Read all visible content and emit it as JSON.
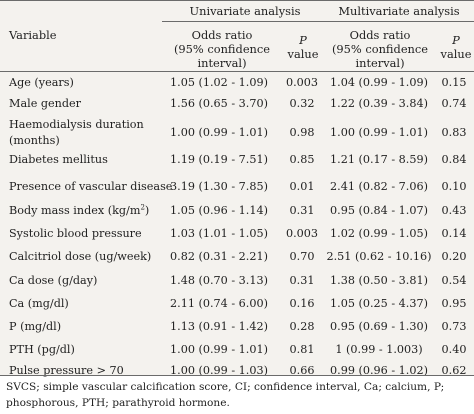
{
  "table": {
    "header": {
      "variable": "Variable",
      "univariate": "Univariate analysis",
      "multivariate": "Multivariate analysis",
      "or_line1": "Odds ratio",
      "or_line2": "(95% confidence",
      "or_line3": "interval)",
      "p_line1": "P",
      "p_line2": "value"
    },
    "rows": [
      {
        "variable": "Age (years)",
        "uni_or": "1.05 (1.02 - 1.09)",
        "uni_p": "0.003",
        "multi_or": "1.04 (0.99 - 1.09)",
        "multi_p": "0.15"
      },
      {
        "variable": "Male gender",
        "uni_or": "1.56 (0.65 - 3.70)",
        "uni_p": "0.32",
        "multi_or": "1.22 (0.39 - 3.84)",
        "multi_p": "0.74"
      },
      {
        "variable": "Haemodialysis duration",
        "variable_line2": "(months)",
        "uni_or": "1.00 (0.99 - 1.01)",
        "uni_p": "0.98",
        "multi_or": "1.00 (0.99 - 1.01)",
        "multi_p": "0.83"
      },
      {
        "variable": "Diabetes mellitus",
        "uni_or": "1.19 (0.19 - 7.51)",
        "uni_p": "0.85",
        "multi_or": "1.21 (0.17 - 8.59)",
        "multi_p": "0.84"
      },
      {
        "variable": "Presence of vascular disease",
        "uni_or": "3.19 (1.30 - 7.85)",
        "uni_p": "0.01",
        "multi_or": "2.41 (0.82 - 7.06)",
        "multi_p": "0.10"
      },
      {
        "variable": "Body mass index (kg/m",
        "variable_sup": "2",
        "variable_close": ")",
        "uni_or": "1.05 (0.96 - 1.14)",
        "uni_p": "0.31",
        "multi_or": "0.95 (0.84 - 1.07)",
        "multi_p": "0.43"
      },
      {
        "variable": "Systolic blood pressure",
        "uni_or": "1.03 (1.01 - 1.05)",
        "uni_p": "0.003",
        "multi_or": "1.02 (0.99 - 1.05)",
        "multi_p": "0.14"
      },
      {
        "variable": "Calcitriol dose (ug/week)",
        "uni_or": "0.82 (0.31 - 2.21)",
        "uni_p": "0.70",
        "multi_or": "2.51 (0.62 - 10.16)",
        "multi_p": "0.20"
      },
      {
        "variable": "Ca dose (g/day)",
        "uni_or": "1.48 (0.70 - 3.13)",
        "uni_p": "0.31",
        "multi_or": "1.38 (0.50 - 3.81)",
        "multi_p": "0.54"
      },
      {
        "variable": "Ca (mg/dl)",
        "uni_or": "2.11 (0.74 - 6.00)",
        "uni_p": "0.16",
        "multi_or": "1.05 (0.25 - 4.37)",
        "multi_p": "0.95"
      },
      {
        "variable": "P (mg/dl)",
        "uni_or": "1.13 (0.91 - 1.42)",
        "uni_p": "0.28",
        "multi_or": "0.95 (0.69 - 1.30)",
        "multi_p": "0.73"
      },
      {
        "variable": "PTH (pg/dl)",
        "uni_or": "1.00 (0.99 - 1.01)",
        "uni_p": "0.81",
        "multi_or": "1 (0.99 - 1.003)",
        "multi_p": "0.40"
      },
      {
        "variable": "Pulse pressure > 70",
        "uni_or": "1.00 (0.99 - 1.03)",
        "uni_p": "0.66",
        "multi_or": "0.99 (0.96 - 1.02)",
        "multi_p": "0.62"
      }
    ]
  },
  "footnote": "SVCS; simple vascular calcification score, CI; confidence interval, Ca; calcium, P; phosphorous, PTH; parathyroid hormone."
}
